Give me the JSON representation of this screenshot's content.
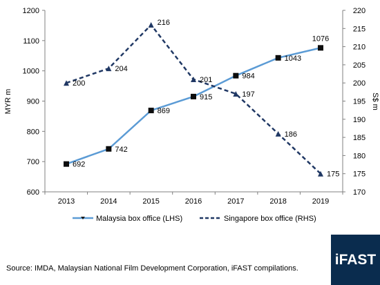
{
  "chart_data": {
    "type": "line",
    "categories": [
      "2013",
      "2014",
      "2015",
      "2016",
      "2017",
      "2018",
      "2019"
    ],
    "series": [
      {
        "name": "Malaysia box office (LHS)",
        "axis": "left",
        "values": [
          692,
          742,
          869,
          915,
          984,
          1043,
          1076
        ],
        "labels": [
          "692",
          "742",
          "869",
          "915",
          "984",
          "1043",
          "1076"
        ],
        "color": "#5b9bd5",
        "line_style": "solid",
        "marker": "square"
      },
      {
        "name": "Singapore box office (RHS)",
        "axis": "right",
        "values": [
          200,
          204,
          216,
          201,
          197,
          186,
          175
        ],
        "labels": [
          "200",
          "204",
          "216",
          "201",
          "197",
          "186",
          "175"
        ],
        "color": "#203864",
        "line_style": "dashed",
        "marker": "triangle"
      }
    ],
    "left_axis": {
      "label": "MYR m",
      "range": [
        600,
        1200
      ],
      "ticks": [
        "600",
        "700",
        "800",
        "900",
        "1000",
        "1100",
        "1200"
      ]
    },
    "right_axis": {
      "label": "S$ m",
      "range": [
        170,
        220
      ],
      "ticks": [
        "170",
        "175",
        "180",
        "185",
        "190",
        "195",
        "200",
        "205",
        "210",
        "215",
        "220"
      ]
    },
    "grid": false,
    "legend_position": "bottom"
  },
  "footer": {
    "source": "Source: IMDA, Malaysian National Film Development Corporation, iFAST compilations.",
    "logo_text": "iFAST",
    "logo_color": "#0a2c4e"
  }
}
